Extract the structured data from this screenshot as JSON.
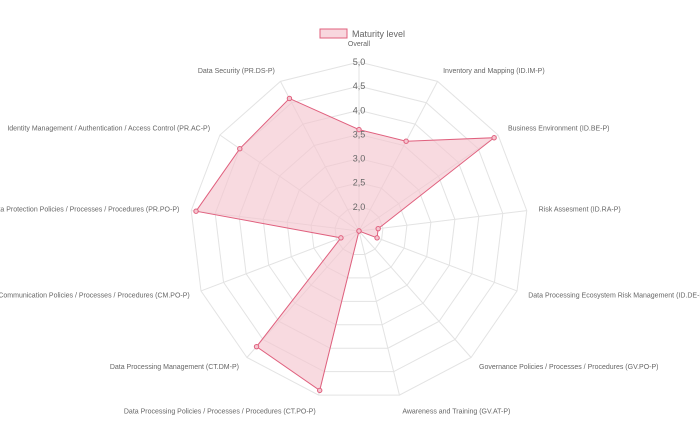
{
  "chart_data": {
    "type": "radar",
    "labels": [
      "Overall",
      "Inventory and Mapping (ID.IM-P)",
      "Business Environment (ID.BE-P)",
      "Risk Assesment (ID.RA-P)",
      "Data Processing Ecosystem Risk Management (ID.DE-P)",
      "Governance Policies / Processes / Procedures (GV.PO-P)",
      "Awareness and Training (GV.AT-P)",
      "Data Processing Policies / Processes / Procedures (CT.PO-P)",
      "Data Processing Management (CT.DM-P)",
      "Communication Policies / Processes / Procedures (CM.PO-P)",
      "Data Protection Policies / Processes / Procedures (PR.PO-P)",
      "Identity Management / Authentication / Access Control (PR.AC-P)",
      "Data Security (PR.DS-P)"
    ],
    "series": [
      {
        "name": "Maturity level",
        "values": [
          3.6,
          3.6,
          4.9,
          1.9,
          1.9,
          1.5,
          1.5,
          4.9,
          4.7,
          1.9,
          4.9,
          4.5,
          4.6
        ]
      }
    ],
    "r_min": 1.5,
    "r_max": 5.0,
    "ticks": [
      "2,0",
      "2,5",
      "3,0",
      "3,5",
      "4,0",
      "4,5",
      "5,0"
    ],
    "tick_values": [
      2.0,
      2.5,
      3.0,
      3.5,
      4.0,
      4.5,
      5.0
    ],
    "legend_position": "top",
    "grid": true,
    "colors": {
      "line": "#e0607e",
      "fill": "#f5c6d0",
      "grid": "#e3e3e3",
      "text": "#666666"
    }
  }
}
